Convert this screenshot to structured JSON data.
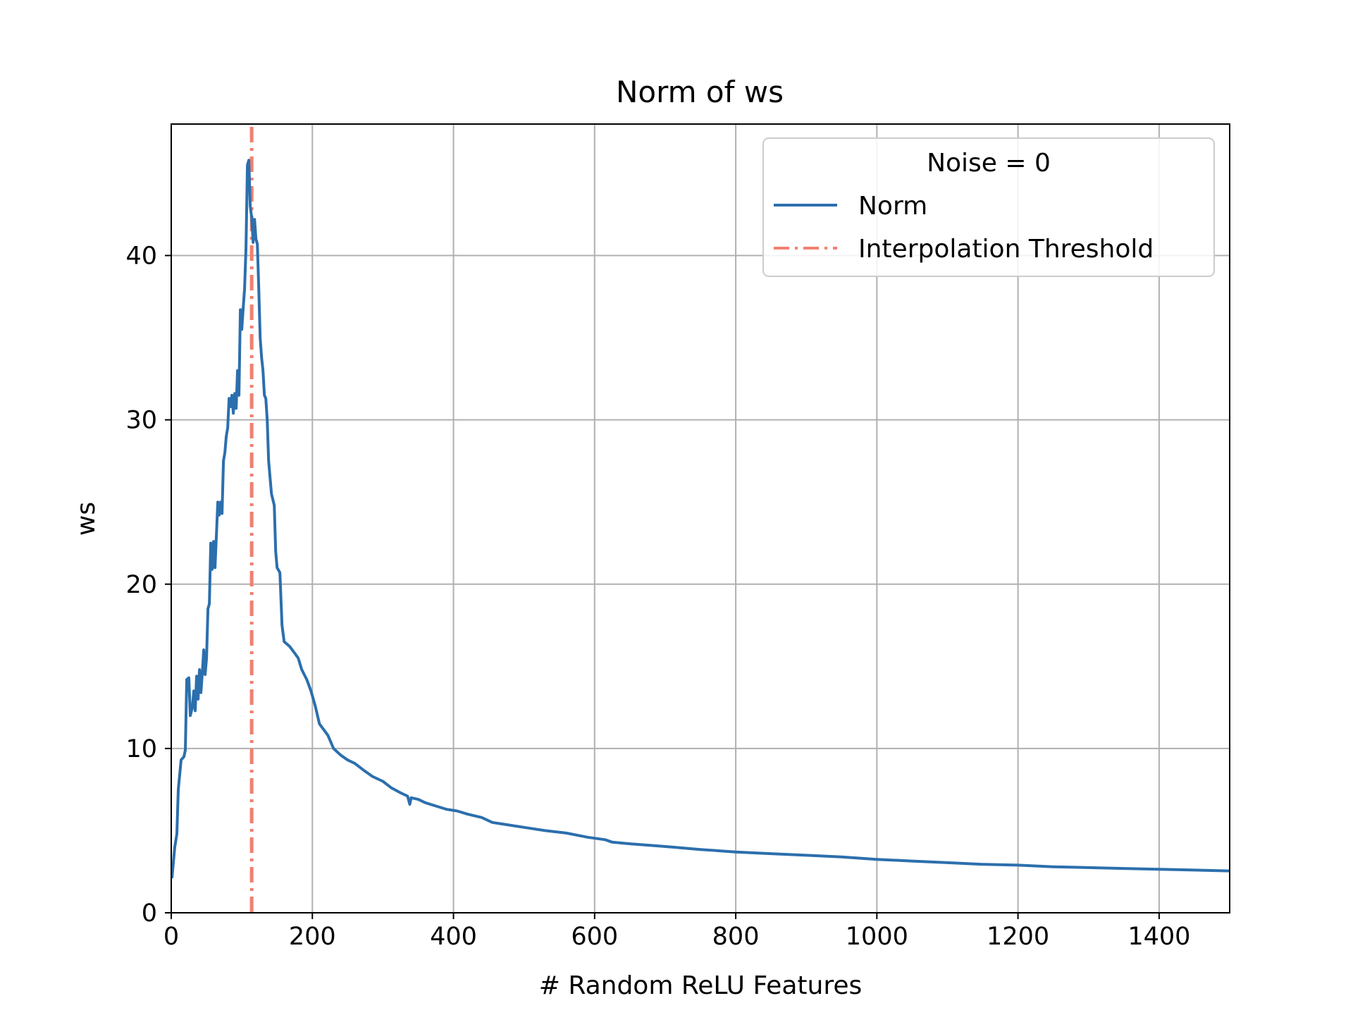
{
  "chart_data": {
    "type": "line",
    "title": "Norm of ws",
    "xlabel": "# Random ReLU Features",
    "ylabel": "ws",
    "xlim": [
      0,
      1500
    ],
    "ylim": [
      0,
      48
    ],
    "x_ticks": [
      "0",
      "200",
      "400",
      "600",
      "800",
      "1000",
      "1200",
      "1400"
    ],
    "y_ticks": [
      "0",
      "10",
      "20",
      "30",
      "40"
    ],
    "grid": true,
    "legend": {
      "title": "Noise = 0",
      "placement": "upper right",
      "entries": [
        "Norm",
        "Interpolation Threshold"
      ]
    },
    "series": [
      {
        "name": "Norm",
        "color": "#2c6fad",
        "style": "solid",
        "points": [
          [
            1,
            2.1
          ],
          [
            5,
            4.0
          ],
          [
            8,
            4.8
          ],
          [
            10,
            7.5
          ],
          [
            14,
            9.3
          ],
          [
            18,
            9.5
          ],
          [
            20,
            9.9
          ],
          [
            22,
            14.2
          ],
          [
            25,
            14.3
          ],
          [
            27,
            12.0
          ],
          [
            30,
            12.5
          ],
          [
            32,
            13.5
          ],
          [
            34,
            12.3
          ],
          [
            36,
            14.4
          ],
          [
            38,
            13.0
          ],
          [
            40,
            14.8
          ],
          [
            42,
            13.4
          ],
          [
            44,
            14.6
          ],
          [
            46,
            16.0
          ],
          [
            48,
            14.5
          ],
          [
            50,
            15.5
          ],
          [
            52,
            18.5
          ],
          [
            54,
            18.8
          ],
          [
            56,
            22.5
          ],
          [
            58,
            20.9
          ],
          [
            60,
            22.6
          ],
          [
            62,
            21.0
          ],
          [
            64,
            23.0
          ],
          [
            66,
            25.0
          ],
          [
            68,
            24.2
          ],
          [
            70,
            25.0
          ],
          [
            72,
            24.3
          ],
          [
            74,
            27.5
          ],
          [
            76,
            28.0
          ],
          [
            78,
            29.0
          ],
          [
            80,
            29.5
          ],
          [
            82,
            31.3
          ],
          [
            84,
            30.8
          ],
          [
            86,
            31.5
          ],
          [
            88,
            30.4
          ],
          [
            90,
            31.6
          ],
          [
            92,
            30.7
          ],
          [
            94,
            33.0
          ],
          [
            96,
            31.5
          ],
          [
            98,
            36.7
          ],
          [
            100,
            35.5
          ],
          [
            102,
            36.8
          ],
          [
            104,
            38.0
          ],
          [
            106,
            40.5
          ],
          [
            108,
            45.5
          ],
          [
            110,
            45.8
          ],
          [
            112,
            43.0
          ],
          [
            114,
            42.3
          ],
          [
            116,
            40.8
          ],
          [
            118,
            42.2
          ],
          [
            120,
            41.0
          ],
          [
            122,
            40.7
          ],
          [
            124,
            38.0
          ],
          [
            126,
            35.0
          ],
          [
            128,
            33.8
          ],
          [
            130,
            33.0
          ],
          [
            132,
            31.5
          ],
          [
            134,
            31.3
          ],
          [
            136,
            30.0
          ],
          [
            138,
            27.5
          ],
          [
            140,
            26.5
          ],
          [
            142,
            25.5
          ],
          [
            146,
            24.8
          ],
          [
            148,
            22.0
          ],
          [
            150,
            21.0
          ],
          [
            154,
            20.7
          ],
          [
            157,
            17.5
          ],
          [
            160,
            16.5
          ],
          [
            168,
            16.2
          ],
          [
            175,
            15.8
          ],
          [
            180,
            15.5
          ],
          [
            185,
            14.8
          ],
          [
            192,
            14.2
          ],
          [
            198,
            13.5
          ],
          [
            204,
            12.6
          ],
          [
            210,
            11.5
          ],
          [
            222,
            10.8
          ],
          [
            230,
            10.0
          ],
          [
            240,
            9.6
          ],
          [
            250,
            9.3
          ],
          [
            260,
            9.1
          ],
          [
            272,
            8.7
          ],
          [
            285,
            8.3
          ],
          [
            300,
            8.0
          ],
          [
            312,
            7.6
          ],
          [
            325,
            7.3
          ],
          [
            335,
            7.1
          ],
          [
            338,
            6.6
          ],
          [
            340,
            7.0
          ],
          [
            350,
            6.9
          ],
          [
            360,
            6.7
          ],
          [
            375,
            6.5
          ],
          [
            390,
            6.3
          ],
          [
            405,
            6.2
          ],
          [
            420,
            6.0
          ],
          [
            440,
            5.8
          ],
          [
            455,
            5.5
          ],
          [
            470,
            5.4
          ],
          [
            500,
            5.2
          ],
          [
            530,
            5.0
          ],
          [
            560,
            4.85
          ],
          [
            590,
            4.6
          ],
          [
            615,
            4.45
          ],
          [
            625,
            4.3
          ],
          [
            650,
            4.2
          ],
          [
            680,
            4.1
          ],
          [
            710,
            4.0
          ],
          [
            750,
            3.85
          ],
          [
            800,
            3.7
          ],
          [
            850,
            3.6
          ],
          [
            900,
            3.5
          ],
          [
            950,
            3.4
          ],
          [
            1000,
            3.25
          ],
          [
            1050,
            3.15
          ],
          [
            1100,
            3.05
          ],
          [
            1150,
            2.95
          ],
          [
            1200,
            2.9
          ],
          [
            1250,
            2.8
          ],
          [
            1300,
            2.75
          ],
          [
            1350,
            2.7
          ],
          [
            1400,
            2.65
          ],
          [
            1450,
            2.6
          ],
          [
            1500,
            2.55
          ]
        ]
      },
      {
        "name": "Interpolation Threshold",
        "color": "#f08070",
        "style": "dashdot",
        "x": 114
      }
    ]
  }
}
